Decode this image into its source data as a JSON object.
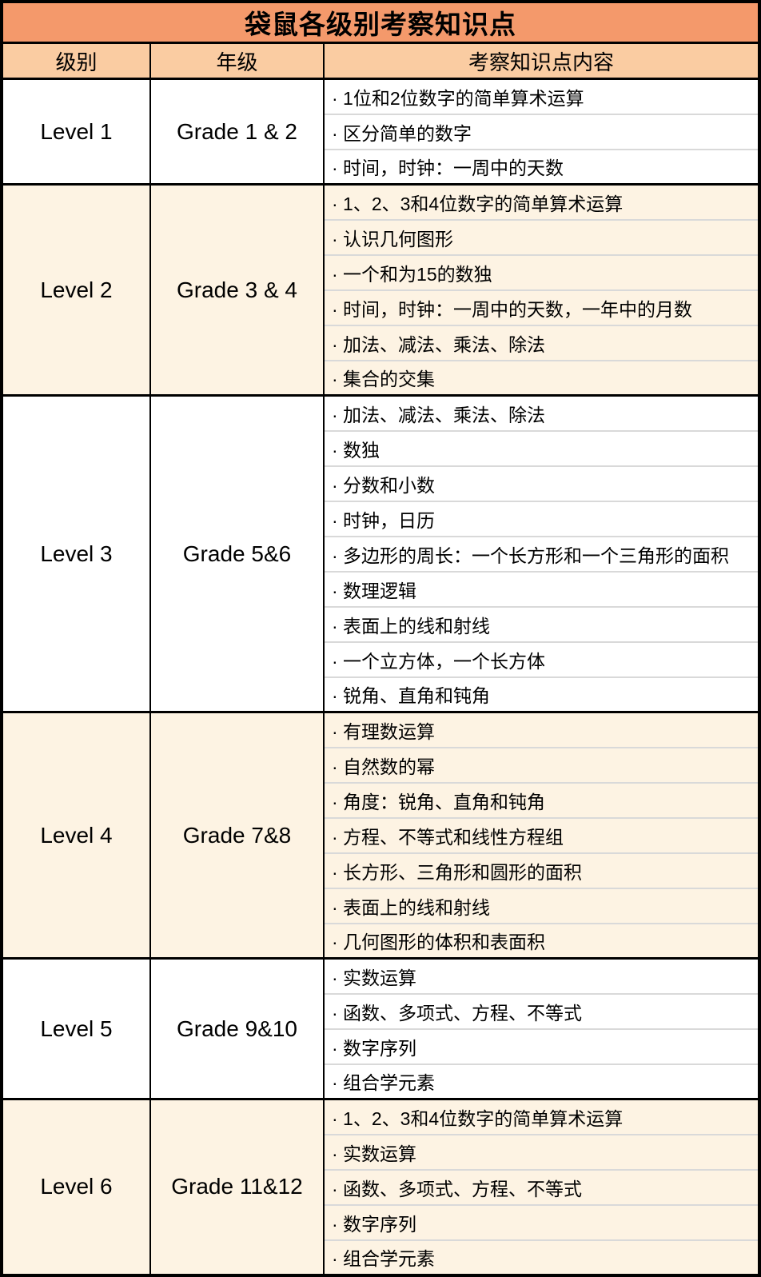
{
  "table": {
    "title": "袋鼠各级别考察知识点",
    "columns": [
      "级别",
      "年级",
      "考察知识点内容"
    ],
    "levels": [
      {
        "level": "Level 1",
        "grade": "Grade 1 & 2",
        "shaded": false,
        "items": [
          "· 1位和2位数字的简单算术运算",
          "· 区分简单的数字",
          "· 时间，时钟：一周中的天数"
        ]
      },
      {
        "level": "Level 2",
        "grade": "Grade 3 & 4",
        "shaded": true,
        "items": [
          "· 1、2、3和4位数字的简单算术运算",
          "· 认识几何图形",
          "· 一个和为15的数独",
          "· 时间，时钟：一周中的天数，一年中的月数",
          "· 加法、减法、乘法、除法",
          "· 集合的交集"
        ]
      },
      {
        "level": "Level 3",
        "grade": "Grade 5&6",
        "shaded": false,
        "items": [
          "· 加法、减法、乘法、除法",
          "· 数独",
          "· 分数和小数",
          "· 时钟，日历",
          "· 多边形的周长：一个长方形和一个三角形的面积",
          "· 数理逻辑",
          "· 表面上的线和射线",
          "· 一个立方体，一个长方体",
          "· 锐角、直角和钝角"
        ]
      },
      {
        "level": "Level 4",
        "grade": "Grade 7&8",
        "shaded": true,
        "items": [
          "· 有理数运算",
          "· 自然数的幂",
          "· 角度：锐角、直角和钝角",
          "· 方程、不等式和线性方程组",
          "· 长方形、三角形和圆形的面积",
          "· 表面上的线和射线",
          "· 几何图形的体积和表面积"
        ]
      },
      {
        "level": "Level 5",
        "grade": "Grade 9&10",
        "shaded": false,
        "items": [
          "· 实数运算",
          "· 函数、多项式、方程、不等式",
          "· 数字序列",
          "· 组合学元素"
        ]
      },
      {
        "level": "Level 6",
        "grade": "Grade 11&12",
        "shaded": true,
        "items": [
          "· 1、2、3和4位数字的简单算术运算",
          "· 实数运算",
          "· 函数、多项式、方程、不等式",
          "· 数字序列",
          "· 组合学元素"
        ]
      }
    ],
    "colors": {
      "title_bg": "#F4996B",
      "header_bg": "#FACCA2",
      "shaded_bg": "#FDF3E3",
      "white_bg": "#FFFFFF",
      "divider_gray": "#D9D9D9",
      "border_black": "#000000"
    }
  }
}
